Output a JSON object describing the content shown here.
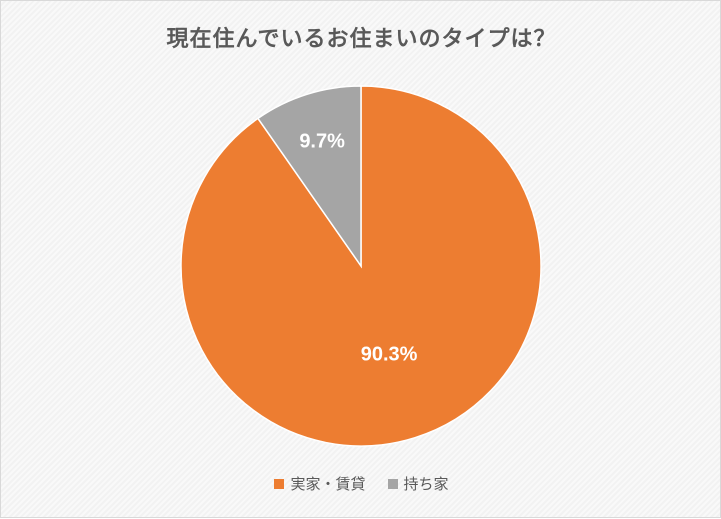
{
  "chart_data": {
    "type": "pie",
    "title": "現在住んでいるお住まいのタイプは？",
    "slices": [
      {
        "label": "実家・賃貸",
        "value": 90.3,
        "value_label": "90.3%",
        "color": "#ed7d31"
      },
      {
        "label": "持ち家",
        "value": 9.7,
        "value_label": "9.7%",
        "color": "#a5a5a5"
      }
    ],
    "legend_position": "bottom",
    "start_angle": "12 o'clock",
    "direction": "clockwise"
  }
}
